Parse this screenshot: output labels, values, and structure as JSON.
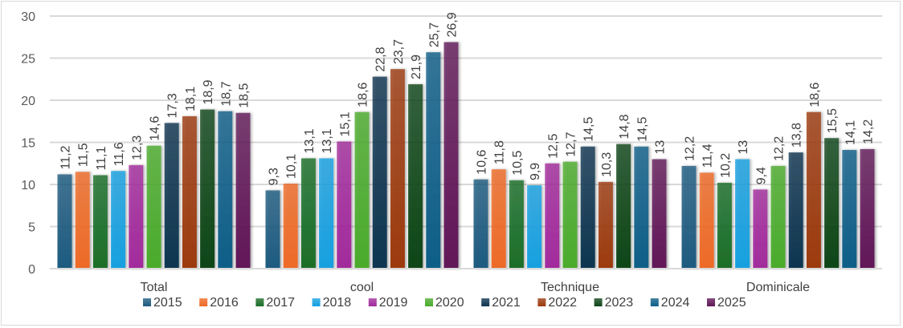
{
  "chart_data": {
    "type": "bar",
    "title": "",
    "xlabel": "",
    "ylabel": "",
    "ylim": [
      0,
      30
    ],
    "yticks": [
      "0",
      "5",
      "10",
      "15",
      "20",
      "25",
      "30"
    ],
    "grid": true,
    "legend_position": "bottom",
    "categories": [
      "Total",
      "cool",
      "Technique",
      "Dominicale"
    ],
    "series": [
      {
        "name": "2015",
        "color": "#1d5b80",
        "values": [
          11.2,
          9.3,
          10.6,
          12.2
        ],
        "labels": [
          "11,2",
          "9,3",
          "10,6",
          "12,2"
        ]
      },
      {
        "name": "2016",
        "color": "#ee6a26",
        "values": [
          11.5,
          10.1,
          11.8,
          11.4
        ],
        "labels": [
          "11,5",
          "10,1",
          "11,8",
          "11,4"
        ]
      },
      {
        "name": "2017",
        "color": "#1a6e28",
        "values": [
          11.1,
          13.1,
          10.5,
          10.2
        ],
        "labels": [
          "11,1",
          "13,1",
          "10,5",
          "10,2"
        ]
      },
      {
        "name": "2018",
        "color": "#15a0e0",
        "values": [
          11.6,
          13.1,
          9.9,
          13
        ],
        "labels": [
          "11,6",
          "13,1",
          "9,9",
          "13"
        ]
      },
      {
        "name": "2019",
        "color": "#a22a9c",
        "values": [
          12.3,
          15.1,
          12.5,
          9.4
        ],
        "labels": [
          "12,3",
          "15,1",
          "12,5",
          "9,4"
        ]
      },
      {
        "name": "2020",
        "color": "#4aab2c",
        "values": [
          14.6,
          18.6,
          12.7,
          12.2
        ],
        "labels": [
          "14,6",
          "18,6",
          "12,7",
          "12,2"
        ]
      },
      {
        "name": "2021",
        "color": "#0e3550",
        "values": [
          17.3,
          22.8,
          14.5,
          13.8
        ],
        "labels": [
          "17,3",
          "22,8",
          "14,5",
          "13,8"
        ]
      },
      {
        "name": "2022",
        "color": "#9c3a0e",
        "values": [
          18.1,
          23.7,
          10.3,
          18.6
        ],
        "labels": [
          "18,1",
          "23,7",
          "10,3",
          "18,6"
        ]
      },
      {
        "name": "2023",
        "color": "#0f4619",
        "values": [
          18.9,
          21.9,
          14.8,
          15.5
        ],
        "labels": [
          "18,9",
          "21,9",
          "14,8",
          "15,5"
        ]
      },
      {
        "name": "2024",
        "color": "#0e5e88",
        "values": [
          18.7,
          25.7,
          14.5,
          14.1
        ],
        "labels": [
          "18,7",
          "25,7",
          "14,5",
          "14,1"
        ]
      },
      {
        "name": "2025",
        "color": "#611758",
        "values": [
          18.5,
          26.9,
          13,
          14.2
        ],
        "labels": [
          "18,5",
          "26,9",
          "13",
          "14,2"
        ]
      }
    ]
  }
}
